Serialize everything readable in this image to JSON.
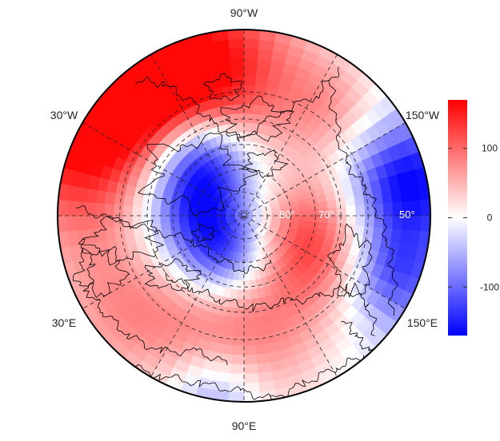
{
  "map": {
    "projection": "north-polar-stereographic",
    "longitude_labels": [
      {
        "name": "lon-label-90w",
        "text": "90°W"
      },
      {
        "name": "lon-label-30w",
        "text": "30°W"
      },
      {
        "name": "lon-label-150w",
        "text": "150°W"
      },
      {
        "name": "lon-label-30e",
        "text": "30°E"
      },
      {
        "name": "lon-label-150e",
        "text": "150°E"
      },
      {
        "name": "lon-label-90e",
        "text": "90°E"
      }
    ],
    "latitude_labels": [
      {
        "name": "lat-label-80",
        "text": "80°"
      },
      {
        "name": "lat-label-70",
        "text": "70°"
      },
      {
        "name": "lat-label-50",
        "text": "50°"
      }
    ],
    "colorbar": {
      "min": -170,
      "max": 170,
      "ticks": [
        {
          "value": 100,
          "label": "100"
        },
        {
          "value": 0,
          "label": "0"
        },
        {
          "value": -100,
          "label": "-100"
        }
      ],
      "colors": {
        "low": "#0000ff",
        "mid": "#ffffff",
        "high": "#ff0000"
      }
    }
  }
}
